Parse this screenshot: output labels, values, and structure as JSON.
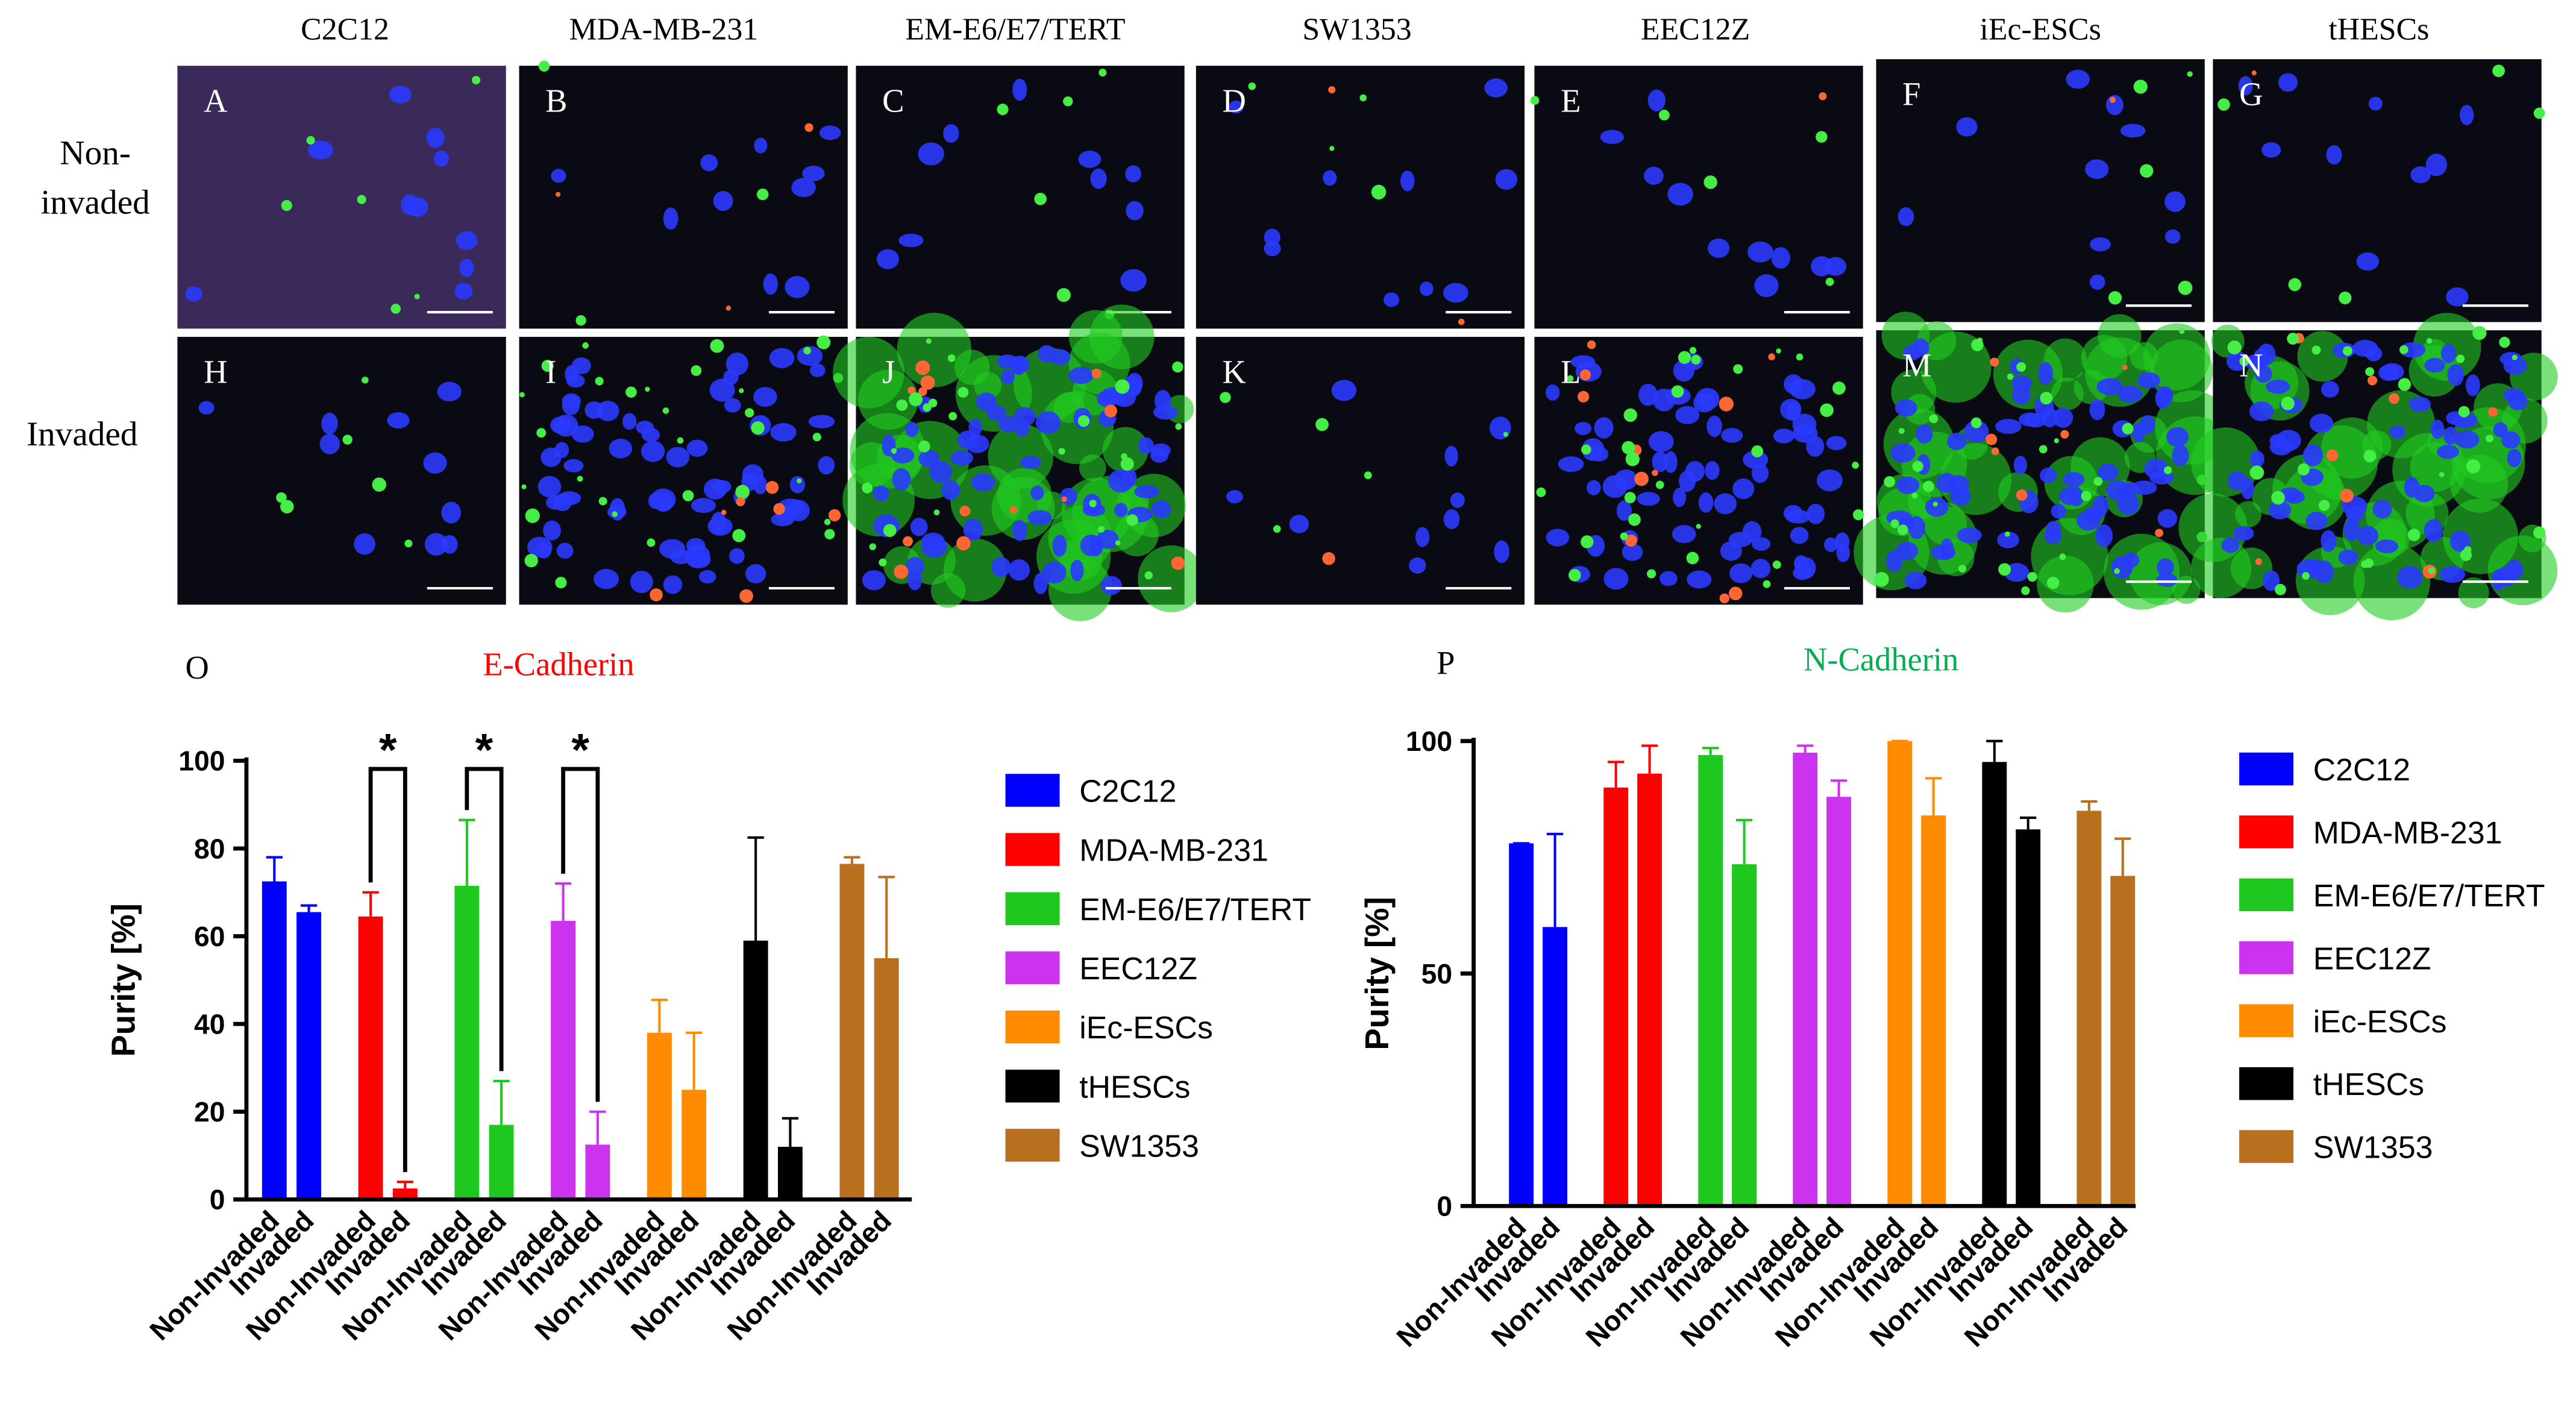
{
  "panels": {
    "columns": [
      "C2C12",
      "MDA-MB-231",
      "EM-E6/E7/TERT",
      "SW1353",
      "EEC12Z",
      "iEc-ESCs",
      "tHESCs"
    ],
    "rows": [
      [
        "Non-",
        "invaded"
      ],
      [
        "Invaded"
      ]
    ],
    "letters": [
      [
        "A",
        "B",
        "C",
        "D",
        "E",
        "F",
        "G"
      ],
      [
        "H",
        "I",
        "J",
        "K",
        "L",
        "M",
        "N"
      ]
    ]
  },
  "chart_data": [
    {
      "type": "bar",
      "panel_label": "O",
      "title": "E-Cadherin",
      "title_color": "#ff0000",
      "ylabel": "Purity [%]",
      "categories": [
        "Non-Invaded",
        "Invaded"
      ],
      "ylim": [
        0,
        100
      ],
      "yticks": [
        0,
        20,
        40,
        60,
        80,
        100
      ],
      "series": [
        {
          "name": "C2C12",
          "color": "#0000ff",
          "values": [
            72.5,
            65.5
          ],
          "errors": [
            5.5,
            1.5
          ]
        },
        {
          "name": "MDA-MB-231",
          "color": "#ff0000",
          "values": [
            64.5,
            2.5
          ],
          "errors": [
            5.5,
            1.5
          ],
          "annotation": "*"
        },
        {
          "name": "EM-E6/E7/TERT",
          "color": "#1ec81e",
          "values": [
            71.5,
            17
          ],
          "errors": [
            15,
            10
          ],
          "annotation": "*"
        },
        {
          "name": "EEC12Z",
          "color": "#cc33ee",
          "values": [
            63.5,
            12.5
          ],
          "errors": [
            8.5,
            7.5
          ],
          "annotation": "*"
        },
        {
          "name": "iEc-ESCs",
          "color": "#ff8c00",
          "values": [
            38,
            25
          ],
          "errors": [
            7.5,
            13
          ]
        },
        {
          "name": "tHESCs",
          "color": "#000000",
          "values": [
            59,
            12
          ],
          "errors": [
            23.5,
            6.5
          ]
        },
        {
          "name": "SW1353",
          "color": "#b8701e",
          "values": [
            76.5,
            55
          ],
          "errors": [
            1.5,
            18.5
          ]
        }
      ]
    },
    {
      "type": "bar",
      "panel_label": "P",
      "title": "N-Cadherin",
      "title_color": "#00b050",
      "ylabel": "Purity [%]",
      "categories": [
        "Non-Invaded",
        "Invaded"
      ],
      "ylim": [
        0,
        100
      ],
      "yticks": [
        0,
        50,
        100
      ],
      "series": [
        {
          "name": "C2C12",
          "color": "#0000ff",
          "values": [
            78,
            60
          ],
          "errors": [
            0,
            20
          ]
        },
        {
          "name": "MDA-MB-231",
          "color": "#ff0000",
          "values": [
            90,
            93
          ],
          "errors": [
            5.5,
            6
          ]
        },
        {
          "name": "EM-E6/E7/TERT",
          "color": "#1ec81e",
          "values": [
            97,
            73.5
          ],
          "errors": [
            1.5,
            9.5
          ]
        },
        {
          "name": "EEC12Z",
          "color": "#cc33ee",
          "values": [
            97.5,
            88
          ],
          "errors": [
            1.5,
            3.5
          ]
        },
        {
          "name": "iEc-ESCs",
          "color": "#ff8c00",
          "values": [
            100,
            84
          ],
          "errors": [
            0,
            8
          ]
        },
        {
          "name": "tHESCs",
          "color": "#000000",
          "values": [
            95.5,
            81
          ],
          "errors": [
            4.5,
            2.5
          ]
        },
        {
          "name": "SW1353",
          "color": "#b8701e",
          "values": [
            85,
            71
          ],
          "errors": [
            2,
            8
          ]
        }
      ]
    }
  ]
}
